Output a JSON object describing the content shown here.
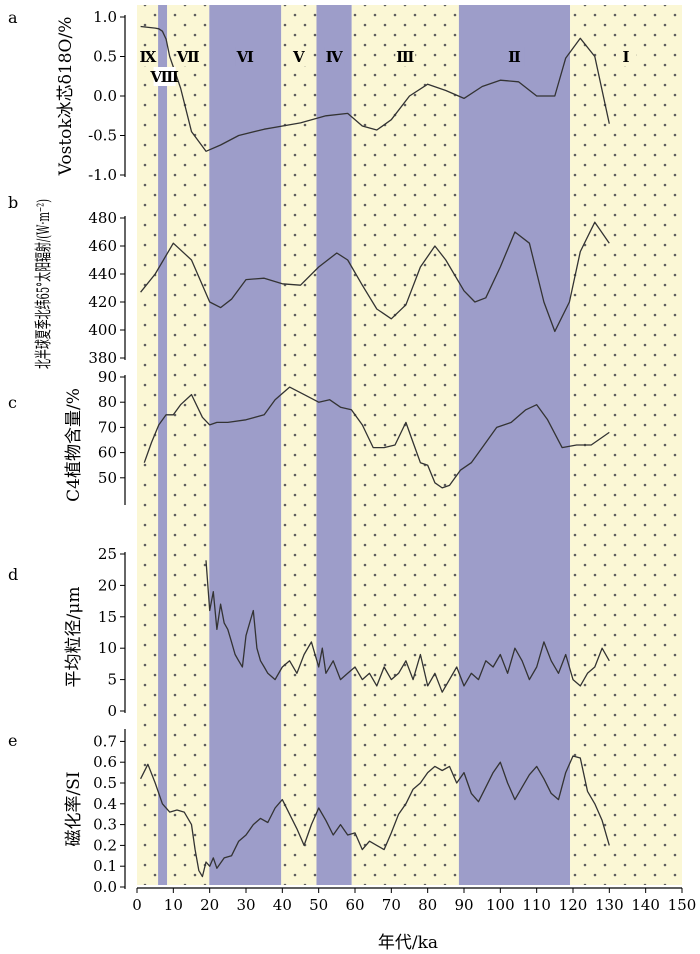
{
  "chart_data": [
    {
      "id": "a",
      "type": "line",
      "panel_label": "a",
      "ylabel": "Vostok冰芯δ18O/%",
      "ylim": [
        -1.0,
        1.0
      ],
      "yticks": [
        "1.0",
        "0.5",
        "0.0",
        "-0.5",
        "-1.0"
      ],
      "series": [
        {
          "x": [
            1,
            5,
            6,
            7,
            8,
            9,
            12,
            15,
            19,
            23,
            28,
            35,
            45,
            52,
            58,
            62,
            66,
            70,
            75,
            80,
            85,
            90,
            95,
            100,
            105,
            110,
            115,
            118,
            122,
            126,
            130
          ],
          "y": [
            0.88,
            0.86,
            0.85,
            0.82,
            0.72,
            0.5,
            0.1,
            -0.45,
            -0.7,
            -0.62,
            -0.5,
            -0.42,
            -0.34,
            -0.25,
            -0.22,
            -0.38,
            -0.43,
            -0.3,
            0.0,
            0.15,
            0.07,
            -0.03,
            0.12,
            0.2,
            0.18,
            0.0,
            0.0,
            0.48,
            0.73,
            0.5,
            -0.35
          ]
        }
      ]
    },
    {
      "id": "b",
      "type": "line",
      "panel_label": "b",
      "ylabel": "北半球夏季北纬65°太阳辐射/(W·m⁻²)",
      "ylim": [
        380,
        480
      ],
      "yticks": [
        "480",
        "460",
        "440",
        "420",
        "400",
        "380"
      ],
      "series": [
        {
          "x": [
            1,
            5,
            10,
            15,
            20,
            23,
            26,
            30,
            35,
            40,
            45,
            50,
            55,
            58,
            62,
            66,
            70,
            74,
            78,
            82,
            85,
            90,
            93,
            96,
            100,
            104,
            108,
            112,
            115,
            119,
            122,
            126,
            130
          ],
          "y": [
            427,
            440,
            462,
            450,
            420,
            416,
            422,
            436,
            437,
            433,
            432,
            445,
            455,
            450,
            432,
            415,
            408,
            418,
            445,
            460,
            450,
            428,
            420,
            423,
            445,
            470,
            462,
            420,
            399,
            420,
            456,
            477,
            462
          ]
        }
      ]
    },
    {
      "id": "c",
      "type": "line",
      "panel_label": "c",
      "ylabel": "C4植物含量/%",
      "ylim": [
        40,
        90
      ],
      "yticks": [
        "90",
        "80",
        "70",
        "60",
        "50"
      ],
      "series": [
        {
          "x": [
            2,
            4,
            6,
            8,
            10,
            12,
            15,
            18,
            20,
            22,
            25,
            30,
            35,
            38,
            42,
            46,
            50,
            53,
            56,
            59,
            62,
            65,
            68,
            71,
            74,
            76,
            78,
            80,
            82,
            84,
            86,
            89,
            92,
            95,
            99,
            103,
            107,
            110,
            113,
            117,
            121,
            125,
            130
          ],
          "y": [
            56,
            64,
            71,
            75,
            75,
            79,
            83,
            74,
            71,
            72,
            72,
            73,
            75,
            81,
            86,
            83,
            80,
            81,
            78,
            77,
            71,
            62,
            62,
            63,
            72,
            64,
            56,
            55,
            48,
            46,
            47,
            53,
            56,
            62,
            70,
            72,
            77,
            79,
            73,
            62,
            63,
            63,
            68
          ]
        }
      ]
    },
    {
      "id": "d",
      "type": "line",
      "panel_label": "d",
      "ylabel": "平均粒径/μm",
      "ylim": [
        0,
        25
      ],
      "yticks": [
        "25",
        "20",
        "15",
        "10",
        "5",
        "0"
      ],
      "series": [
        {
          "x": [
            19,
            20,
            21,
            22,
            23,
            24,
            25,
            26,
            27,
            28,
            29,
            30,
            31,
            32,
            33,
            34,
            35,
            36,
            38,
            40,
            42,
            44,
            46,
            48,
            50,
            51,
            52,
            54,
            56,
            58,
            60,
            62,
            64,
            66,
            68,
            70,
            72,
            74,
            76,
            78,
            80,
            82,
            84,
            86,
            88,
            90,
            92,
            94,
            96,
            98,
            100,
            102,
            104,
            106,
            108,
            110,
            112,
            114,
            116,
            118,
            120,
            122,
            124,
            126,
            128,
            130
          ],
          "y": [
            24,
            16,
            19,
            13,
            17,
            14,
            13,
            11,
            9,
            8,
            7,
            12,
            14,
            16,
            10,
            8,
            7,
            6,
            5,
            7,
            8,
            6,
            9,
            11,
            7,
            10,
            6,
            8,
            5,
            6,
            7,
            5,
            6,
            4,
            7,
            5,
            6,
            8,
            5,
            9,
            4,
            6,
            3,
            5,
            7,
            4,
            6,
            5,
            8,
            7,
            9,
            6,
            10,
            8,
            5,
            7,
            11,
            8,
            6,
            9,
            5,
            4,
            6,
            7,
            10,
            8
          ]
        }
      ]
    },
    {
      "id": "e",
      "type": "line",
      "panel_label": "e",
      "ylabel": "磁化率/SI",
      "xlabel": "年代/ka",
      "ylim": [
        0,
        0.75
      ],
      "yticks": [
        "0.7",
        "0.6",
        "0.5",
        "0.4",
        "0.3",
        "0.2",
        "0.1",
        "0.0"
      ],
      "xticks": [
        "0",
        "10",
        "20",
        "30",
        "40",
        "50",
        "60",
        "70",
        "80",
        "90",
        "100",
        "110",
        "120",
        "130",
        "140",
        "150"
      ],
      "series": [
        {
          "x": [
            1,
            3,
            5,
            7,
            9,
            11,
            13,
            15,
            16,
            17,
            18,
            19,
            20,
            21,
            22,
            24,
            26,
            28,
            30,
            32,
            34,
            36,
            38,
            40,
            42,
            44,
            46,
            48,
            50,
            52,
            54,
            56,
            58,
            60,
            62,
            64,
            66,
            68,
            70,
            72,
            74,
            76,
            78,
            80,
            82,
            84,
            86,
            88,
            90,
            92,
            94,
            96,
            98,
            100,
            102,
            104,
            106,
            108,
            110,
            112,
            114,
            116,
            118,
            120,
            122,
            124,
            126,
            128,
            130
          ],
          "y": [
            0.52,
            0.59,
            0.5,
            0.4,
            0.36,
            0.37,
            0.36,
            0.3,
            0.18,
            0.08,
            0.05,
            0.12,
            0.1,
            0.14,
            0.09,
            0.14,
            0.15,
            0.22,
            0.25,
            0.3,
            0.33,
            0.31,
            0.38,
            0.42,
            0.35,
            0.28,
            0.2,
            0.3,
            0.38,
            0.32,
            0.25,
            0.3,
            0.25,
            0.26,
            0.18,
            0.22,
            0.2,
            0.18,
            0.26,
            0.35,
            0.4,
            0.47,
            0.5,
            0.55,
            0.58,
            0.56,
            0.58,
            0.5,
            0.55,
            0.45,
            0.41,
            0.48,
            0.55,
            0.6,
            0.5,
            0.42,
            0.48,
            0.54,
            0.58,
            0.52,
            0.45,
            0.42,
            0.55,
            0.63,
            0.62,
            0.46,
            0.4,
            0.32,
            0.2
          ]
        }
      ]
    }
  ],
  "stages": [
    {
      "label": "Ⅸ",
      "start": 0,
      "end": 5.8,
      "warm": false
    },
    {
      "label": "Ⅷ",
      "start": 5.8,
      "end": 8.3,
      "warm": true
    },
    {
      "label": "Ⅶ",
      "start": 8.3,
      "end": 19.9,
      "warm": false
    },
    {
      "label": "Ⅵ",
      "start": 19.9,
      "end": 39.7,
      "warm": true
    },
    {
      "label": "Ⅴ",
      "start": 39.7,
      "end": 49.4,
      "warm": false
    },
    {
      "label": "Ⅳ",
      "start": 49.4,
      "end": 59.1,
      "warm": true
    },
    {
      "label": "Ⅲ",
      "start": 59.1,
      "end": 88.6,
      "warm": false
    },
    {
      "label": "Ⅱ",
      "start": 88.6,
      "end": 119.2,
      "warm": true
    },
    {
      "label": "Ⅰ",
      "start": 119.2,
      "end": 150,
      "warm": false
    }
  ],
  "colors": {
    "band_warm": "#9d9dc9",
    "band_cold": "#fbf7d5",
    "dots": "#5d5d5d",
    "line": "#333333"
  }
}
